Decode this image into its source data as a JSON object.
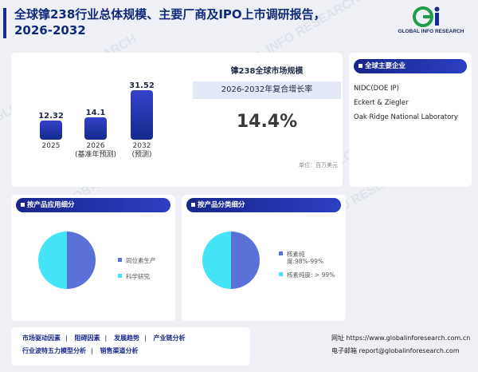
{
  "header": {
    "title": "全球镎238行业总体规模、主要厂商及IPO上市调研报告，2026-2032",
    "logo_text": "GLOBAL INFO RESEARCH",
    "logo_mark": "Gi"
  },
  "watermark_text": "GLOBAL INFO RESEARCH",
  "market": {
    "title": "镎238全球市场规模",
    "cagr_label": "2026-2032年复合增长率",
    "cagr_value": "14.4%",
    "unit": "单位：百万美元",
    "bars": [
      {
        "value": 12.32,
        "label": "12.32",
        "year": "2025",
        "note": ""
      },
      {
        "value": 14.1,
        "label": "14.1",
        "year": "2026",
        "note": "(基准年预测)"
      },
      {
        "value": 31.52,
        "label": "31.52",
        "year": "2032",
        "note": "(预测)"
      }
    ]
  },
  "companies": {
    "heading": "全球主要企业",
    "items": [
      "NIDC(DOE IP)",
      "Eckert & Ziegler",
      "Oak Ridge National Laboratory"
    ]
  },
  "by_application": {
    "heading": "按产品应用细分",
    "legend": [
      "同位素生产",
      "科学研究"
    ]
  },
  "by_type": {
    "heading": "按产品分类细分",
    "legend": [
      "核素纯度:98%-99%",
      "核素纯度: > 99%"
    ]
  },
  "colors": {
    "primary": "#1a2a8c",
    "slice_blue": "#5a72d8",
    "slice_cyan": "#45e3f7"
  },
  "chart_data": [
    {
      "type": "bar",
      "categories": [
        "2025",
        "2026",
        "2032"
      ],
      "values": [
        12.32,
        14.1,
        31.52
      ],
      "title": "镎238全球市场规模"
    },
    {
      "type": "pie",
      "title": "按产品应用细分",
      "labels": [
        "同位素生产",
        "科学研究"
      ],
      "values": [
        50,
        50
      ]
    },
    {
      "type": "pie",
      "title": "按产品分类细分",
      "labels": [
        "核素纯度:98%-99%",
        "核素纯度: > 99%"
      ],
      "values": [
        50,
        50
      ]
    }
  ],
  "footer": {
    "links_row1": [
      "市场驱动因素",
      "阻碍因素",
      "发展趋势",
      "产业链分析"
    ],
    "links_row2": [
      "行业波特五力模型分析",
      "销售渠道分析"
    ],
    "website": "网址 https://www.globalinforesearch.com.cn",
    "email": "电子邮箱 report@globalinforesearch.com"
  }
}
